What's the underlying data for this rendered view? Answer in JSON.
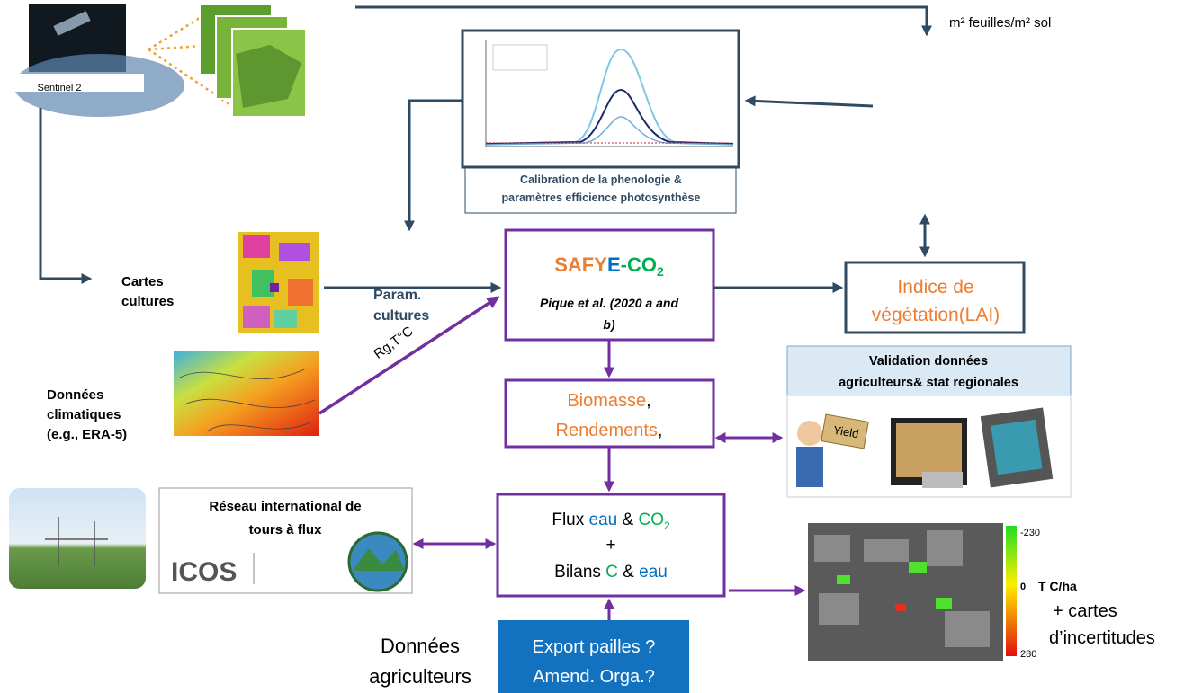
{
  "satellite": {
    "label": "Sentinel 2"
  },
  "top_unit": "m² feuilles/m² sol",
  "calibration": {
    "lines": [
      "Calibration de la phenologie &",
      "paramètres efficience photosynthèse"
    ]
  },
  "cartes_cultures": {
    "lines": [
      "Cartes",
      "cultures"
    ]
  },
  "param_cultures": {
    "lines": [
      "Param.",
      "cultures"
    ]
  },
  "climate_arrow": "Rg,T°C",
  "donnees_climatiques": {
    "lines": [
      "Données",
      "climatiques",
      "(e.g., ERA-5)"
    ]
  },
  "model": {
    "name_parts": [
      "SAFY",
      "E",
      "-CO",
      "2"
    ],
    "reference_lines": [
      "Pique et al. (2020 a and",
      "b)"
    ]
  },
  "lai": {
    "lines": [
      "Indice de",
      "végétation(LAI)"
    ]
  },
  "validation": {
    "lines": [
      "Validation données",
      "agriculteurs& stat regionales"
    ],
    "sign": "Yield"
  },
  "biomass": {
    "line1": [
      "Biomasse",
      ","
    ],
    "line2": [
      "Rendements",
      ","
    ]
  },
  "flux_network": {
    "lines": [
      "Réseau international de",
      "tours à flux"
    ],
    "logo": "ICOS"
  },
  "flux": {
    "line1": [
      "Flux ",
      "eau",
      " & ",
      "CO",
      "2"
    ],
    "line2": "+",
    "line3": [
      "Bilans ",
      "C",
      " & ",
      "eau"
    ]
  },
  "map": {
    "scale": [
      "-230",
      "0",
      "280"
    ],
    "unit": "T C/ha",
    "note_lines": [
      "+ cartes",
      "d’incertitudes"
    ]
  },
  "farmers": {
    "lines": [
      "Données",
      "agriculteurs"
    ]
  },
  "export": {
    "lines": [
      "Export pailles ?",
      "Amend. Orga.?"
    ]
  }
}
